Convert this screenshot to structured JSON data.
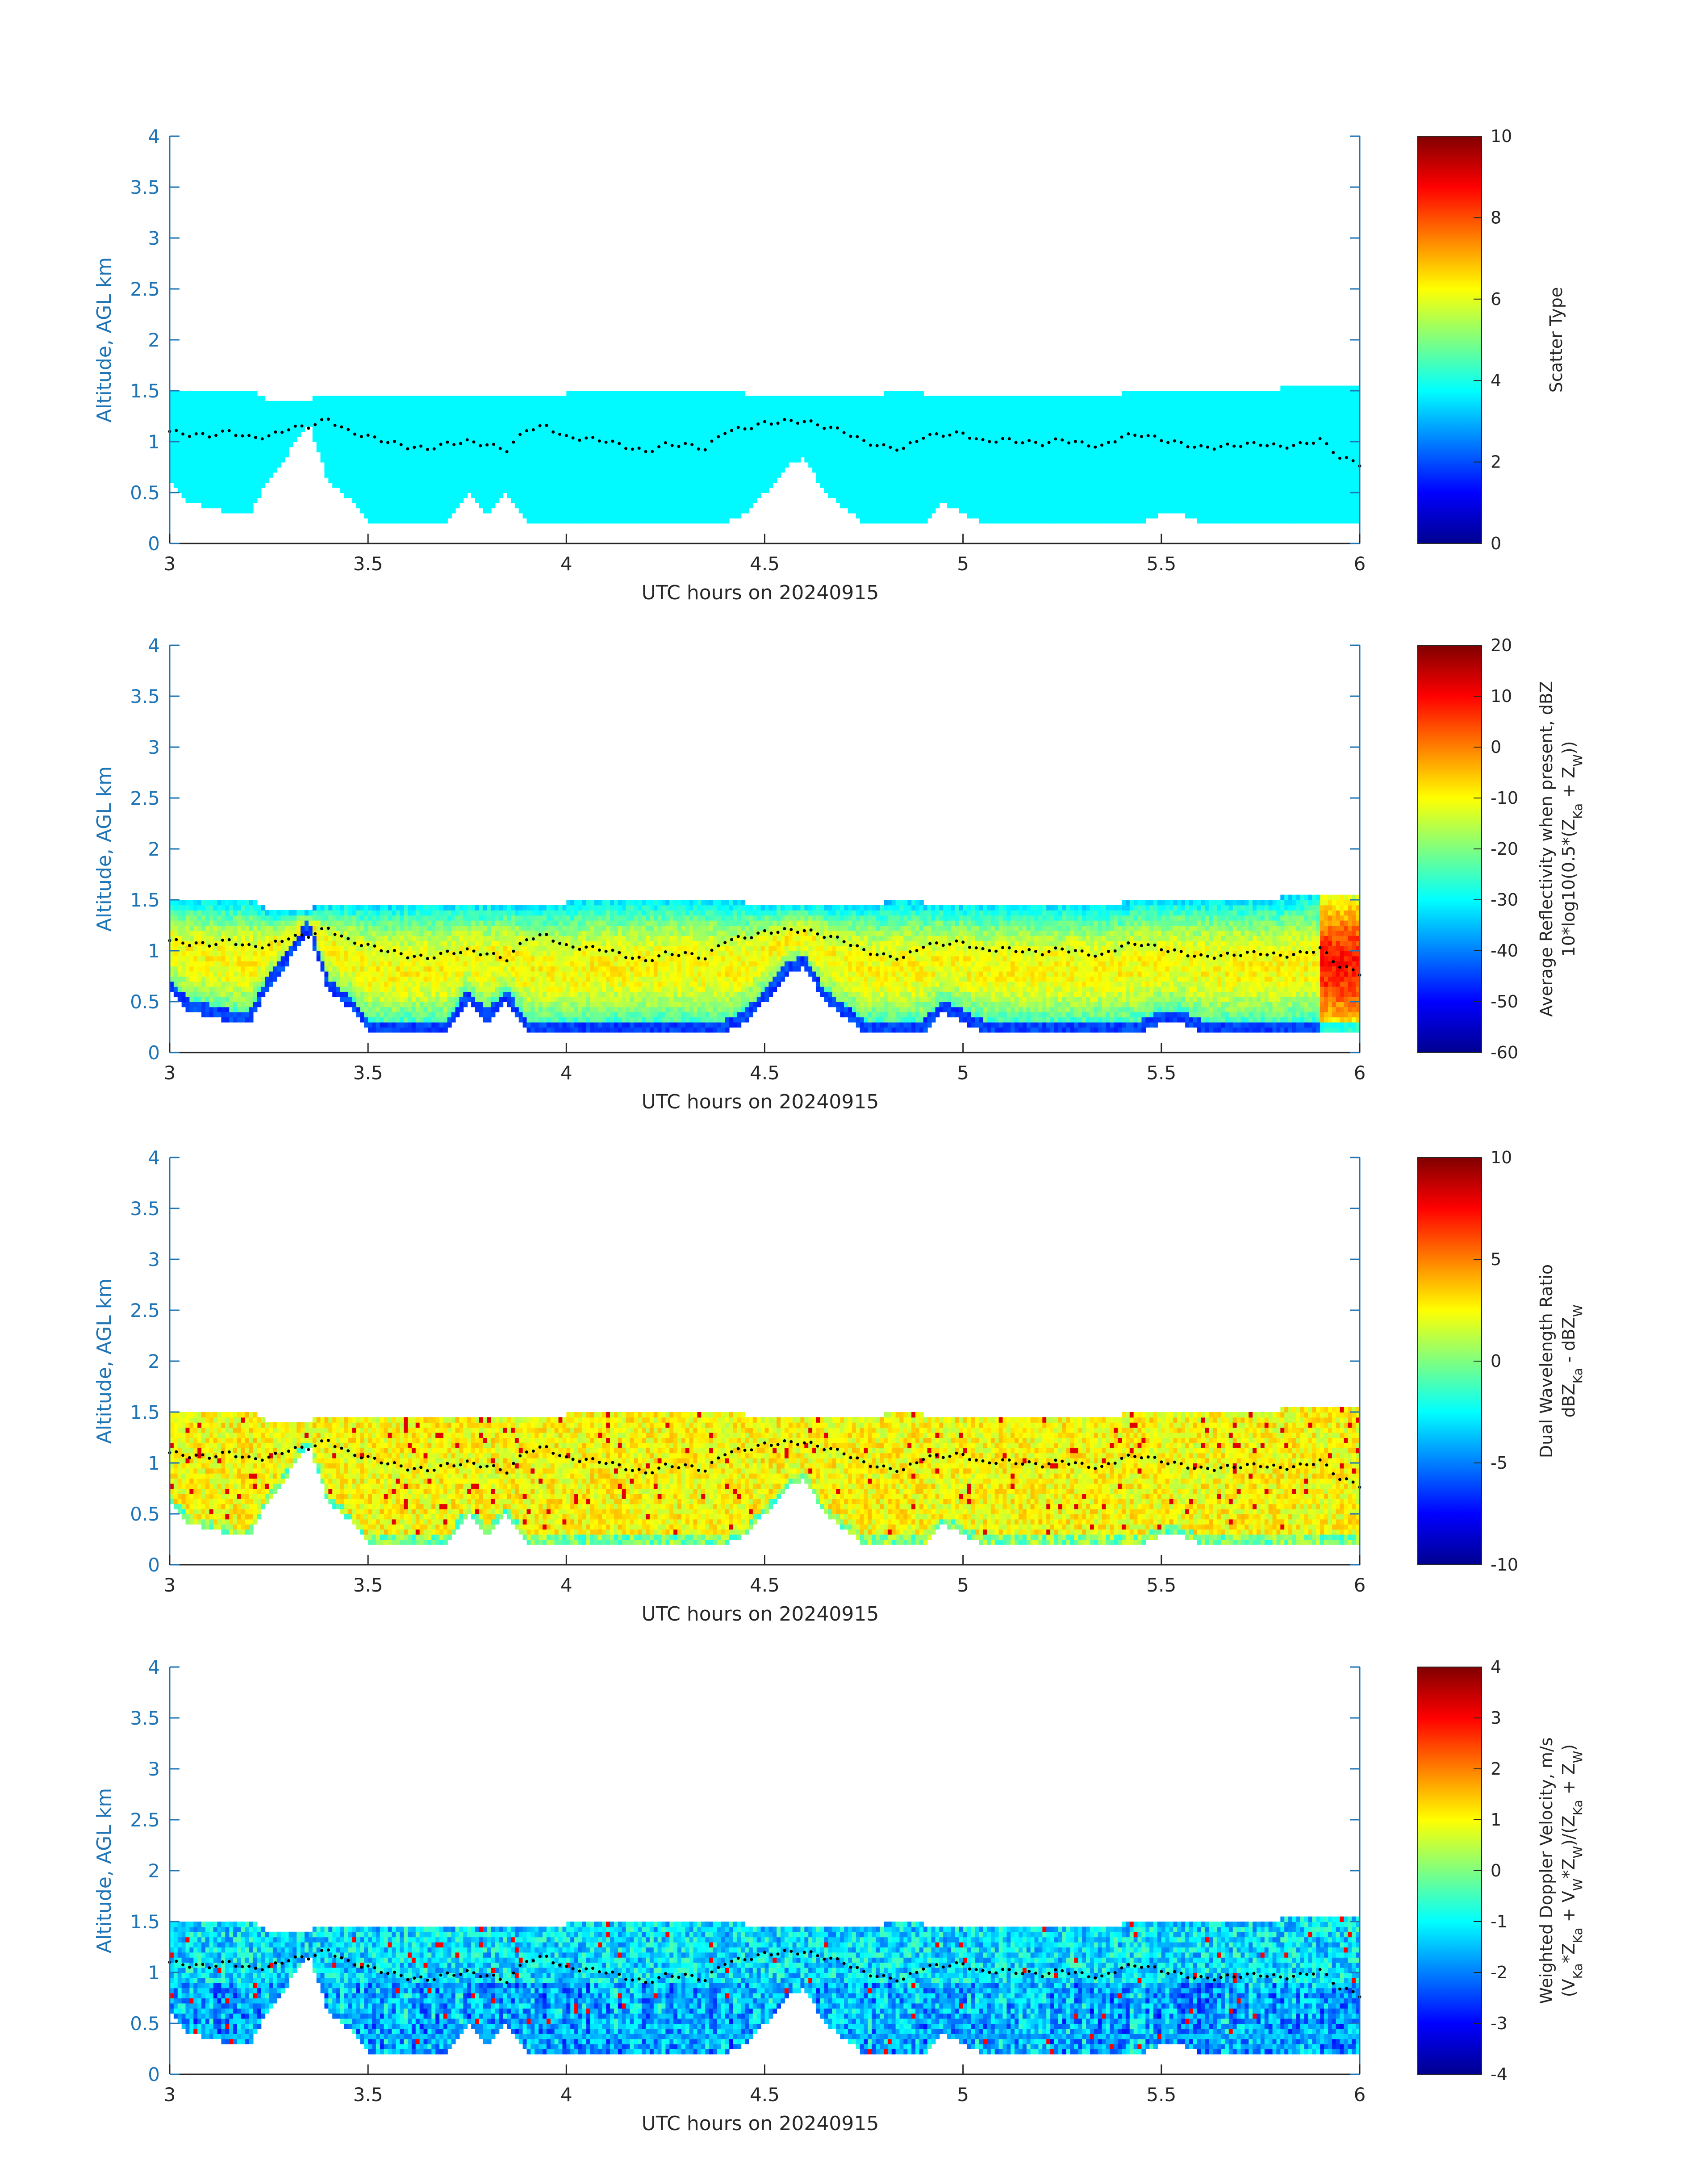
{
  "chart_data": [
    {
      "type": "heatmap",
      "title": "",
      "xlabel": "UTC hours on 20240915",
      "ylabel": "Altitude, AGL km",
      "xlim": [
        3,
        6
      ],
      "ylim": [
        0,
        4
      ],
      "xticks": [
        "3",
        "3.5",
        "4",
        "4.5",
        "5",
        "5.5",
        "6"
      ],
      "yticks": [
        "0",
        "0.5",
        "1",
        "1.5",
        "2",
        "2.5",
        "3",
        "3.5",
        "4"
      ],
      "colorbar": {
        "label_lines": [
          "Scatter Type"
        ],
        "range": [
          0,
          10
        ],
        "ticks": [
          "0",
          "2",
          "4",
          "6",
          "8",
          "10"
        ]
      },
      "field": "scatter_type",
      "field_typical": 3.7,
      "colormap": "jet"
    },
    {
      "type": "heatmap",
      "title": "",
      "xlabel": "UTC hours on 20240915",
      "ylabel": "Altitude, AGL km",
      "xlim": [
        3,
        6
      ],
      "ylim": [
        0,
        4
      ],
      "xticks": [
        "3",
        "3.5",
        "4",
        "4.5",
        "5",
        "5.5",
        "6"
      ],
      "yticks": [
        "0",
        "0.5",
        "1",
        "1.5",
        "2",
        "2.5",
        "3",
        "3.5",
        "4"
      ],
      "colorbar": {
        "label_lines": [
          "Average Reflectivity when present, dBZ",
          "10*log10(0.5*(Z",
          "Ka",
          " + Z",
          "W",
          "))"
        ],
        "range": [
          -60,
          20
        ],
        "ticks": [
          "-60",
          "-50",
          "-40",
          "-30",
          "-20",
          "-10",
          "0",
          "10",
          "20"
        ]
      },
      "field": "reflectivity",
      "colormap": "jet"
    },
    {
      "type": "heatmap",
      "title": "",
      "xlabel": "UTC hours on 20240915",
      "ylabel": "Altitude, AGL km",
      "xlim": [
        3,
        6
      ],
      "ylim": [
        0,
        4
      ],
      "xticks": [
        "3",
        "3.5",
        "4",
        "4.5",
        "5",
        "5.5",
        "6"
      ],
      "yticks": [
        "0",
        "0.5",
        "1",
        "1.5",
        "2",
        "2.5",
        "3",
        "3.5",
        "4"
      ],
      "colorbar": {
        "label_lines": [
          "Dual Wavelength Ratio",
          "dBZ",
          "Ka",
          " - dBZ",
          "W"
        ],
        "range": [
          -10,
          10
        ],
        "ticks": [
          "-10",
          "-5",
          "0",
          "5",
          "10"
        ]
      },
      "field": "dwr",
      "colormap": "jet"
    },
    {
      "type": "heatmap",
      "title": "",
      "xlabel": "UTC hours on 20240915",
      "ylabel": "Altitude, AGL km",
      "xlim": [
        3,
        6
      ],
      "ylim": [
        0,
        4
      ],
      "xticks": [
        "3",
        "3.5",
        "4",
        "4.5",
        "5",
        "5.5",
        "6"
      ],
      "yticks": [
        "0",
        "0.5",
        "1",
        "1.5",
        "2",
        "2.5",
        "3",
        "3.5",
        "4"
      ],
      "colorbar": {
        "label_lines": [
          "Weighted Doppler Velocity, m/s",
          "(V",
          "Ka",
          "*Z",
          "Ka",
          " + V",
          "W",
          "*Z",
          "W",
          ")/(Z",
          "Ka",
          " + Z",
          "W",
          ")"
        ],
        "range": [
          -4,
          4
        ],
        "ticks": [
          "-4",
          "-3",
          "-2",
          "-1",
          "0",
          "1",
          "2",
          "3",
          "4"
        ]
      },
      "field": "doppler_velocity",
      "colormap": "jet"
    }
  ],
  "cloud_profile": {
    "time_hours": [
      3.0,
      3.05,
      3.1,
      3.15,
      3.2,
      3.25,
      3.3,
      3.35,
      3.4,
      3.45,
      3.5,
      3.55,
      3.6,
      3.65,
      3.7,
      3.75,
      3.8,
      3.85,
      3.9,
      3.95,
      4.0,
      4.05,
      4.1,
      4.15,
      4.2,
      4.25,
      4.3,
      4.35,
      4.4,
      4.45,
      4.5,
      4.55,
      4.6,
      4.65,
      4.7,
      4.75,
      4.8,
      4.85,
      4.9,
      4.95,
      5.0,
      5.05,
      5.1,
      5.15,
      5.2,
      5.25,
      5.3,
      5.35,
      5.4,
      5.45,
      5.5,
      5.55,
      5.6,
      5.65,
      5.7,
      5.75,
      5.8,
      5.85,
      5.9,
      5.95,
      6.0
    ],
    "top_km": [
      1.5,
      1.5,
      1.5,
      1.5,
      1.5,
      1.38,
      1.38,
      1.38,
      1.45,
      1.45,
      1.45,
      1.45,
      1.45,
      1.45,
      1.45,
      1.45,
      1.45,
      1.45,
      1.45,
      1.45,
      1.45,
      1.5,
      1.5,
      1.5,
      1.5,
      1.5,
      1.5,
      1.5,
      1.5,
      1.45,
      1.45,
      1.45,
      1.45,
      1.45,
      1.45,
      1.45,
      1.45,
      1.5,
      1.45,
      1.45,
      1.45,
      1.45,
      1.45,
      1.45,
      1.45,
      1.45,
      1.45,
      1.45,
      1.45,
      1.5,
      1.5,
      1.5,
      1.5,
      1.5,
      1.5,
      1.5,
      1.5,
      1.55,
      1.55,
      1.55,
      1.55
    ],
    "base_km": [
      0.6,
      0.4,
      0.35,
      0.3,
      0.28,
      0.65,
      0.9,
      1.2,
      0.6,
      0.45,
      0.2,
      0.2,
      0.2,
      0.2,
      0.2,
      0.5,
      0.3,
      0.5,
      0.2,
      0.2,
      0.2,
      0.2,
      0.2,
      0.2,
      0.2,
      0.2,
      0.2,
      0.2,
      0.2,
      0.3,
      0.5,
      0.75,
      0.85,
      0.5,
      0.35,
      0.2,
      0.2,
      0.2,
      0.2,
      0.4,
      0.3,
      0.2,
      0.2,
      0.2,
      0.2,
      0.2,
      0.2,
      0.2,
      0.2,
      0.2,
      0.3,
      0.3,
      0.2,
      0.2,
      0.2,
      0.2,
      0.2,
      0.2,
      0.2,
      0.2,
      0.2
    ]
  },
  "dotted_line_km": [
    1.1,
    1.07,
    1.06,
    1.1,
    1.04,
    1.05,
    1.13,
    1.15,
    1.22,
    1.1,
    1.05,
    1.0,
    0.95,
    0.93,
    0.98,
    1.0,
    0.97,
    0.92,
    1.12,
    1.15,
    1.04,
    1.03,
    1.01,
    0.95,
    0.9,
    0.97,
    0.97,
    0.93,
    1.1,
    1.13,
    1.18,
    1.2,
    1.2,
    1.15,
    1.1,
    1.0,
    0.95,
    0.93,
    1.05,
    1.07,
    1.08,
    1.0,
    1.02,
    1.0,
    0.98,
    1.02,
    0.98,
    0.95,
    1.05,
    1.07,
    1.02,
    0.98,
    0.94,
    0.95,
    0.97,
    0.98,
    0.95,
    0.97,
    1.02,
    0.85,
    0.78
  ]
}
